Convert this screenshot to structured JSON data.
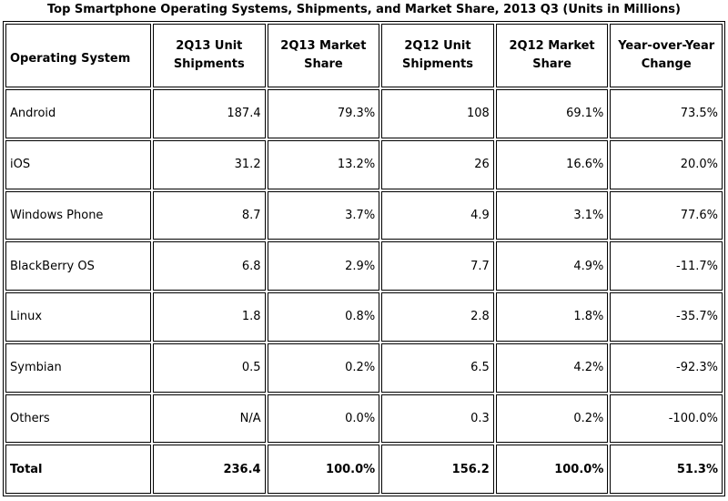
{
  "title": "Top Smartphone Operating Systems, Shipments, and Market Share, 2013 Q3 (Units in Millions)",
  "columns": [
    "Operating System",
    "2Q13 Unit Shipments",
    "2Q13 Market Share",
    "2Q12 Unit Shipments",
    "2Q12 Market Share",
    "Year-over-Year Change"
  ],
  "rows": [
    [
      "Android",
      "187.4",
      "79.3%",
      "108",
      "69.1%",
      "73.5%"
    ],
    [
      "iOS",
      "31.2",
      "13.2%",
      "26",
      "16.6%",
      "20.0%"
    ],
    [
      "Windows Phone",
      "8.7",
      "3.7%",
      "4.9",
      "3.1%",
      "77.6%"
    ],
    [
      "BlackBerry OS",
      "6.8",
      "2.9%",
      "7.7",
      "4.9%",
      "-11.7%"
    ],
    [
      "Linux",
      "1.8",
      "0.8%",
      "2.8",
      "1.8%",
      "-35.7%"
    ],
    [
      "Symbian",
      "0.5",
      "0.2%",
      "6.5",
      "4.2%",
      "-92.3%"
    ],
    [
      "Others",
      "N/A",
      "0.0%",
      "0.3",
      "0.2%",
      "-100.0%"
    ]
  ],
  "total": [
    "Total",
    "236.4",
    "100.0%",
    "156.2",
    "100.0%",
    "51.3%"
  ]
}
